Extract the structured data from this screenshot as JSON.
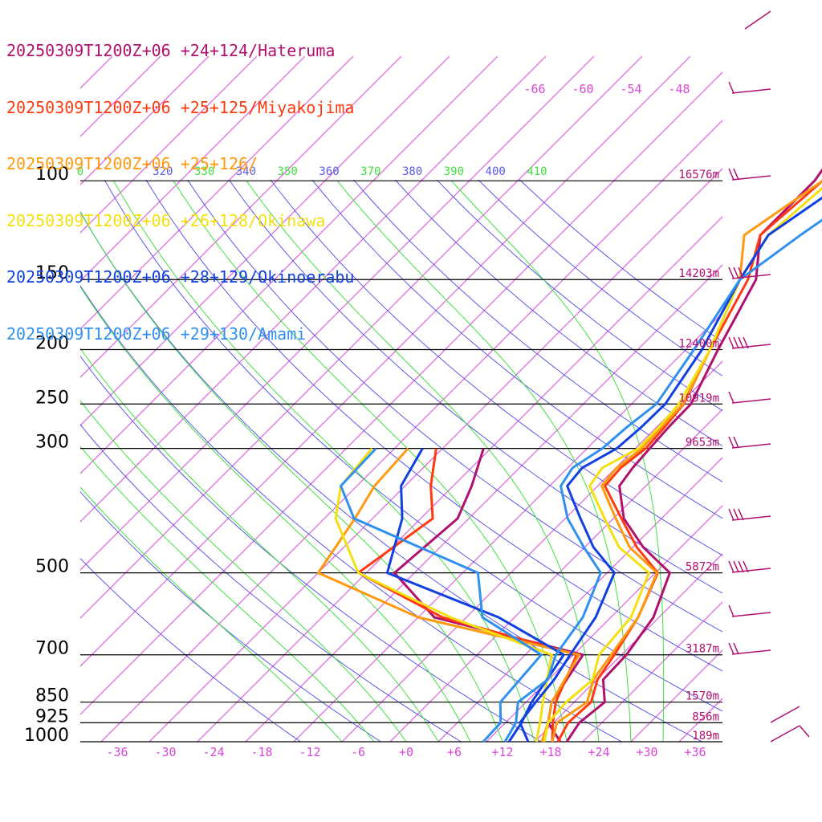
{
  "chart_data": {
    "type": "line",
    "title": "",
    "colors": {
      "isotherm": "#d848d8",
      "dry_adiabat": "#5a5ae6",
      "moist_adiabat": "#40e040",
      "isobar": "#000000",
      "height_label": "#b0106e",
      "wind_barb": "#b0106e"
    },
    "legend": [
      {
        "label": "20250309T1200Z+06 +24+124/Hateruma",
        "color": "#b0106e"
      },
      {
        "label": "20250309T1200Z+06 +25+125/Miyakojima",
        "color": "#ff3a10"
      },
      {
        "label": "20250309T1200Z+06 +25+126/",
        "color": "#ff9a10"
      },
      {
        "label": "20250309T1200Z+06 +26+128/Okinawa",
        "color": "#f4e010"
      },
      {
        "label": "20250309T1200Z+06 +28+129/Okinoerabu",
        "color": "#1040e0"
      },
      {
        "label": "20250309T1200Z+06 +29+130/Amami",
        "color": "#3090f0"
      }
    ],
    "pressure_levels": [
      {
        "p": 100,
        "label": "100",
        "height": "16576m"
      },
      {
        "p": 150,
        "label": "150",
        "height": "14203m"
      },
      {
        "p": 200,
        "label": "200",
        "height": "12400m"
      },
      {
        "p": 250,
        "label": "250",
        "height": "10919m"
      },
      {
        "p": 300,
        "label": "300",
        "height": "9653m"
      },
      {
        "p": 500,
        "label": "500",
        "height": "5872m"
      },
      {
        "p": 700,
        "label": "700",
        "height": "3187m"
      },
      {
        "p": 850,
        "label": "850",
        "height": "1570m"
      },
      {
        "p": 925,
        "label": "925",
        "height": "856m"
      },
      {
        "p": 1000,
        "label": "1000",
        "height": "189m"
      }
    ],
    "x_ticks": [
      "-36",
      "-30",
      "-24",
      "-18",
      "-12",
      "-6",
      "+0",
      "+6",
      "+12",
      "+18",
      "+24",
      "+30",
      "+36"
    ],
    "theta_labels": [
      {
        "t": "0",
        "kind": "moist"
      },
      {
        "t": "320",
        "kind": "dry"
      },
      {
        "t": "330",
        "kind": "moist"
      },
      {
        "t": "340",
        "kind": "dry"
      },
      {
        "t": "350",
        "kind": "moist"
      },
      {
        "t": "360",
        "kind": "dry"
      },
      {
        "t": "370",
        "kind": "moist"
      },
      {
        "t": "380",
        "kind": "dry"
      },
      {
        "t": "390",
        "kind": "moist"
      },
      {
        "t": "400",
        "kind": "dry"
      },
      {
        "t": "410",
        "kind": "moist"
      }
    ],
    "upper_temp_labels": [
      "-66",
      "-60",
      "-54",
      "-48"
    ],
    "series": [
      {
        "name": "Hateruma",
        "color": "#b0106e",
        "temperature": [
          [
            1000,
            20
          ],
          [
            925,
            19.2
          ],
          [
            850,
            19.8
          ],
          [
            775,
            16.8
          ],
          [
            700,
            16.6
          ],
          [
            600,
            15.3
          ],
          [
            500,
            11.8
          ],
          [
            450,
            5.3
          ],
          [
            400,
            -0.7
          ],
          [
            350,
            -5.3
          ],
          [
            325,
            -5.9
          ],
          [
            300,
            -6.2
          ],
          [
            275,
            -6.5
          ],
          [
            250,
            -6.6
          ],
          [
            200,
            -10
          ],
          [
            150,
            -14
          ],
          [
            125,
            -19
          ],
          [
            100,
            -19
          ]
        ],
        "dewpoint": [
          [
            1000,
            19.2
          ],
          [
            925,
            15.3
          ],
          [
            850,
            13.2
          ],
          [
            700,
            11.2
          ],
          [
            600,
            -12
          ],
          [
            500,
            -22.5
          ],
          [
            400,
            -21.4
          ],
          [
            350,
            -23.7
          ],
          [
            300,
            -26.9
          ]
        ]
      },
      {
        "name": "Miyakojima",
        "color": "#ff3a10",
        "temperature": [
          [
            1000,
            18.9
          ],
          [
            925,
            17.8
          ],
          [
            850,
            18.1
          ],
          [
            775,
            16.1
          ],
          [
            700,
            15.1
          ],
          [
            600,
            13.4
          ],
          [
            500,
            10.3
          ],
          [
            450,
            4.5
          ],
          [
            400,
            -1.0
          ],
          [
            350,
            -7.1
          ],
          [
            325,
            -7.4
          ],
          [
            300,
            -6.7
          ],
          [
            275,
            -7.0
          ],
          [
            250,
            -7.5
          ],
          [
            200,
            -11
          ],
          [
            150,
            -15
          ],
          [
            125,
            -19
          ],
          [
            100,
            -18
          ]
        ],
        "dewpoint": [
          [
            1000,
            18.2
          ],
          [
            925,
            15.9
          ],
          [
            850,
            13.7
          ],
          [
            700,
            10.4
          ],
          [
            600,
            -11
          ],
          [
            500,
            -27
          ],
          [
            400,
            -24.5
          ],
          [
            350,
            -28.8
          ],
          [
            300,
            -32.8
          ]
        ]
      },
      {
        "name": "No name",
        "color": "#ff9a10",
        "temperature": [
          [
            1000,
            18.2
          ],
          [
            925,
            16.4
          ],
          [
            850,
            17.6
          ],
          [
            775,
            15.6
          ],
          [
            700,
            14.7
          ],
          [
            600,
            13.4
          ],
          [
            500,
            10.2
          ],
          [
            450,
            3.6
          ],
          [
            400,
            -1.7
          ],
          [
            350,
            -7.5
          ],
          [
            325,
            -7.9
          ],
          [
            300,
            -7.2
          ],
          [
            275,
            -7.4
          ],
          [
            250,
            -7.6
          ],
          [
            200,
            -11
          ],
          [
            150,
            -16
          ],
          [
            125,
            -21
          ],
          [
            100,
            -18
          ]
        ],
        "dewpoint": [
          [
            1000,
            16.9
          ],
          [
            925,
            15.3
          ],
          [
            850,
            13.2
          ],
          [
            700,
            10.7
          ],
          [
            600,
            -14
          ],
          [
            500,
            -32
          ],
          [
            400,
            -34.2
          ],
          [
            350,
            -35.8
          ],
          [
            300,
            -36.3
          ]
        ]
      },
      {
        "name": "Okinawa",
        "color": "#f4e010",
        "temperature": [
          [
            1000,
            17.2
          ],
          [
            925,
            15.3
          ],
          [
            850,
            15.0
          ],
          [
            775,
            15.5
          ],
          [
            700,
            13.2
          ],
          [
            600,
            12.5
          ],
          [
            500,
            9.2
          ],
          [
            450,
            2.3
          ],
          [
            400,
            -3.1
          ],
          [
            350,
            -9.0
          ],
          [
            325,
            -9.7
          ],
          [
            300,
            -7.6
          ],
          [
            275,
            -7.7
          ],
          [
            250,
            -8.1
          ],
          [
            200,
            -11
          ],
          [
            150,
            -16
          ],
          [
            125,
            -18
          ],
          [
            100,
            -17
          ]
        ],
        "dewpoint": [
          [
            1000,
            16.2
          ],
          [
            925,
            14.3
          ],
          [
            850,
            12.1
          ],
          [
            700,
            7.3
          ],
          [
            600,
            -10
          ],
          [
            500,
            -27
          ],
          [
            400,
            -36.6
          ],
          [
            350,
            -40
          ],
          [
            300,
            -40.8
          ]
        ]
      },
      {
        "name": "Okinoerabu",
        "color": "#1040e0",
        "temperature": [
          [
            1000,
            15.2
          ],
          [
            925,
            11.8
          ],
          [
            850,
            11.2
          ],
          [
            775,
            10.7
          ],
          [
            700,
            9.6
          ],
          [
            600,
            8.1
          ],
          [
            500,
            4.9
          ],
          [
            450,
            -0.9
          ],
          [
            400,
            -6.1
          ],
          [
            350,
            -11.8
          ],
          [
            325,
            -12.2
          ],
          [
            300,
            -10.3
          ],
          [
            275,
            -9.9
          ],
          [
            250,
            -9.8
          ],
          [
            200,
            -12
          ],
          [
            150,
            -16
          ],
          [
            125,
            -18
          ],
          [
            100,
            -15
          ]
        ],
        "dewpoint": [
          [
            1000,
            12.8
          ],
          [
            925,
            12.0
          ],
          [
            850,
            10.7
          ],
          [
            700,
            8.8
          ],
          [
            600,
            -4
          ],
          [
            500,
            -23.4
          ],
          [
            400,
            -28.3
          ],
          [
            350,
            -32.5
          ],
          [
            300,
            -34.5
          ]
        ]
      },
      {
        "name": "Amami",
        "color": "#3090f0",
        "temperature": [
          [
            1000,
            12.3
          ],
          [
            925,
            11.3
          ],
          [
            850,
            9.0
          ],
          [
            775,
            9.9
          ],
          [
            700,
            7.8
          ],
          [
            600,
            6.5
          ],
          [
            500,
            3.2
          ],
          [
            450,
            -2.1
          ],
          [
            400,
            -7.7
          ],
          [
            350,
            -12.6
          ],
          [
            325,
            -13.4
          ],
          [
            300,
            -12.1
          ],
          [
            275,
            -11.7
          ],
          [
            250,
            -10.9
          ],
          [
            200,
            -13
          ],
          [
            150,
            -16
          ],
          [
            125,
            -14
          ],
          [
            100,
            -11
          ]
        ],
        "dewpoint": [
          [
            1000,
            9.6
          ],
          [
            925,
            9.4
          ],
          [
            850,
            6.8
          ],
          [
            700,
            6.0
          ],
          [
            600,
            -6
          ],
          [
            500,
            -12.1
          ],
          [
            400,
            -34.3
          ],
          [
            350,
            -40
          ],
          [
            300,
            -40.3
          ]
        ]
      }
    ]
  }
}
